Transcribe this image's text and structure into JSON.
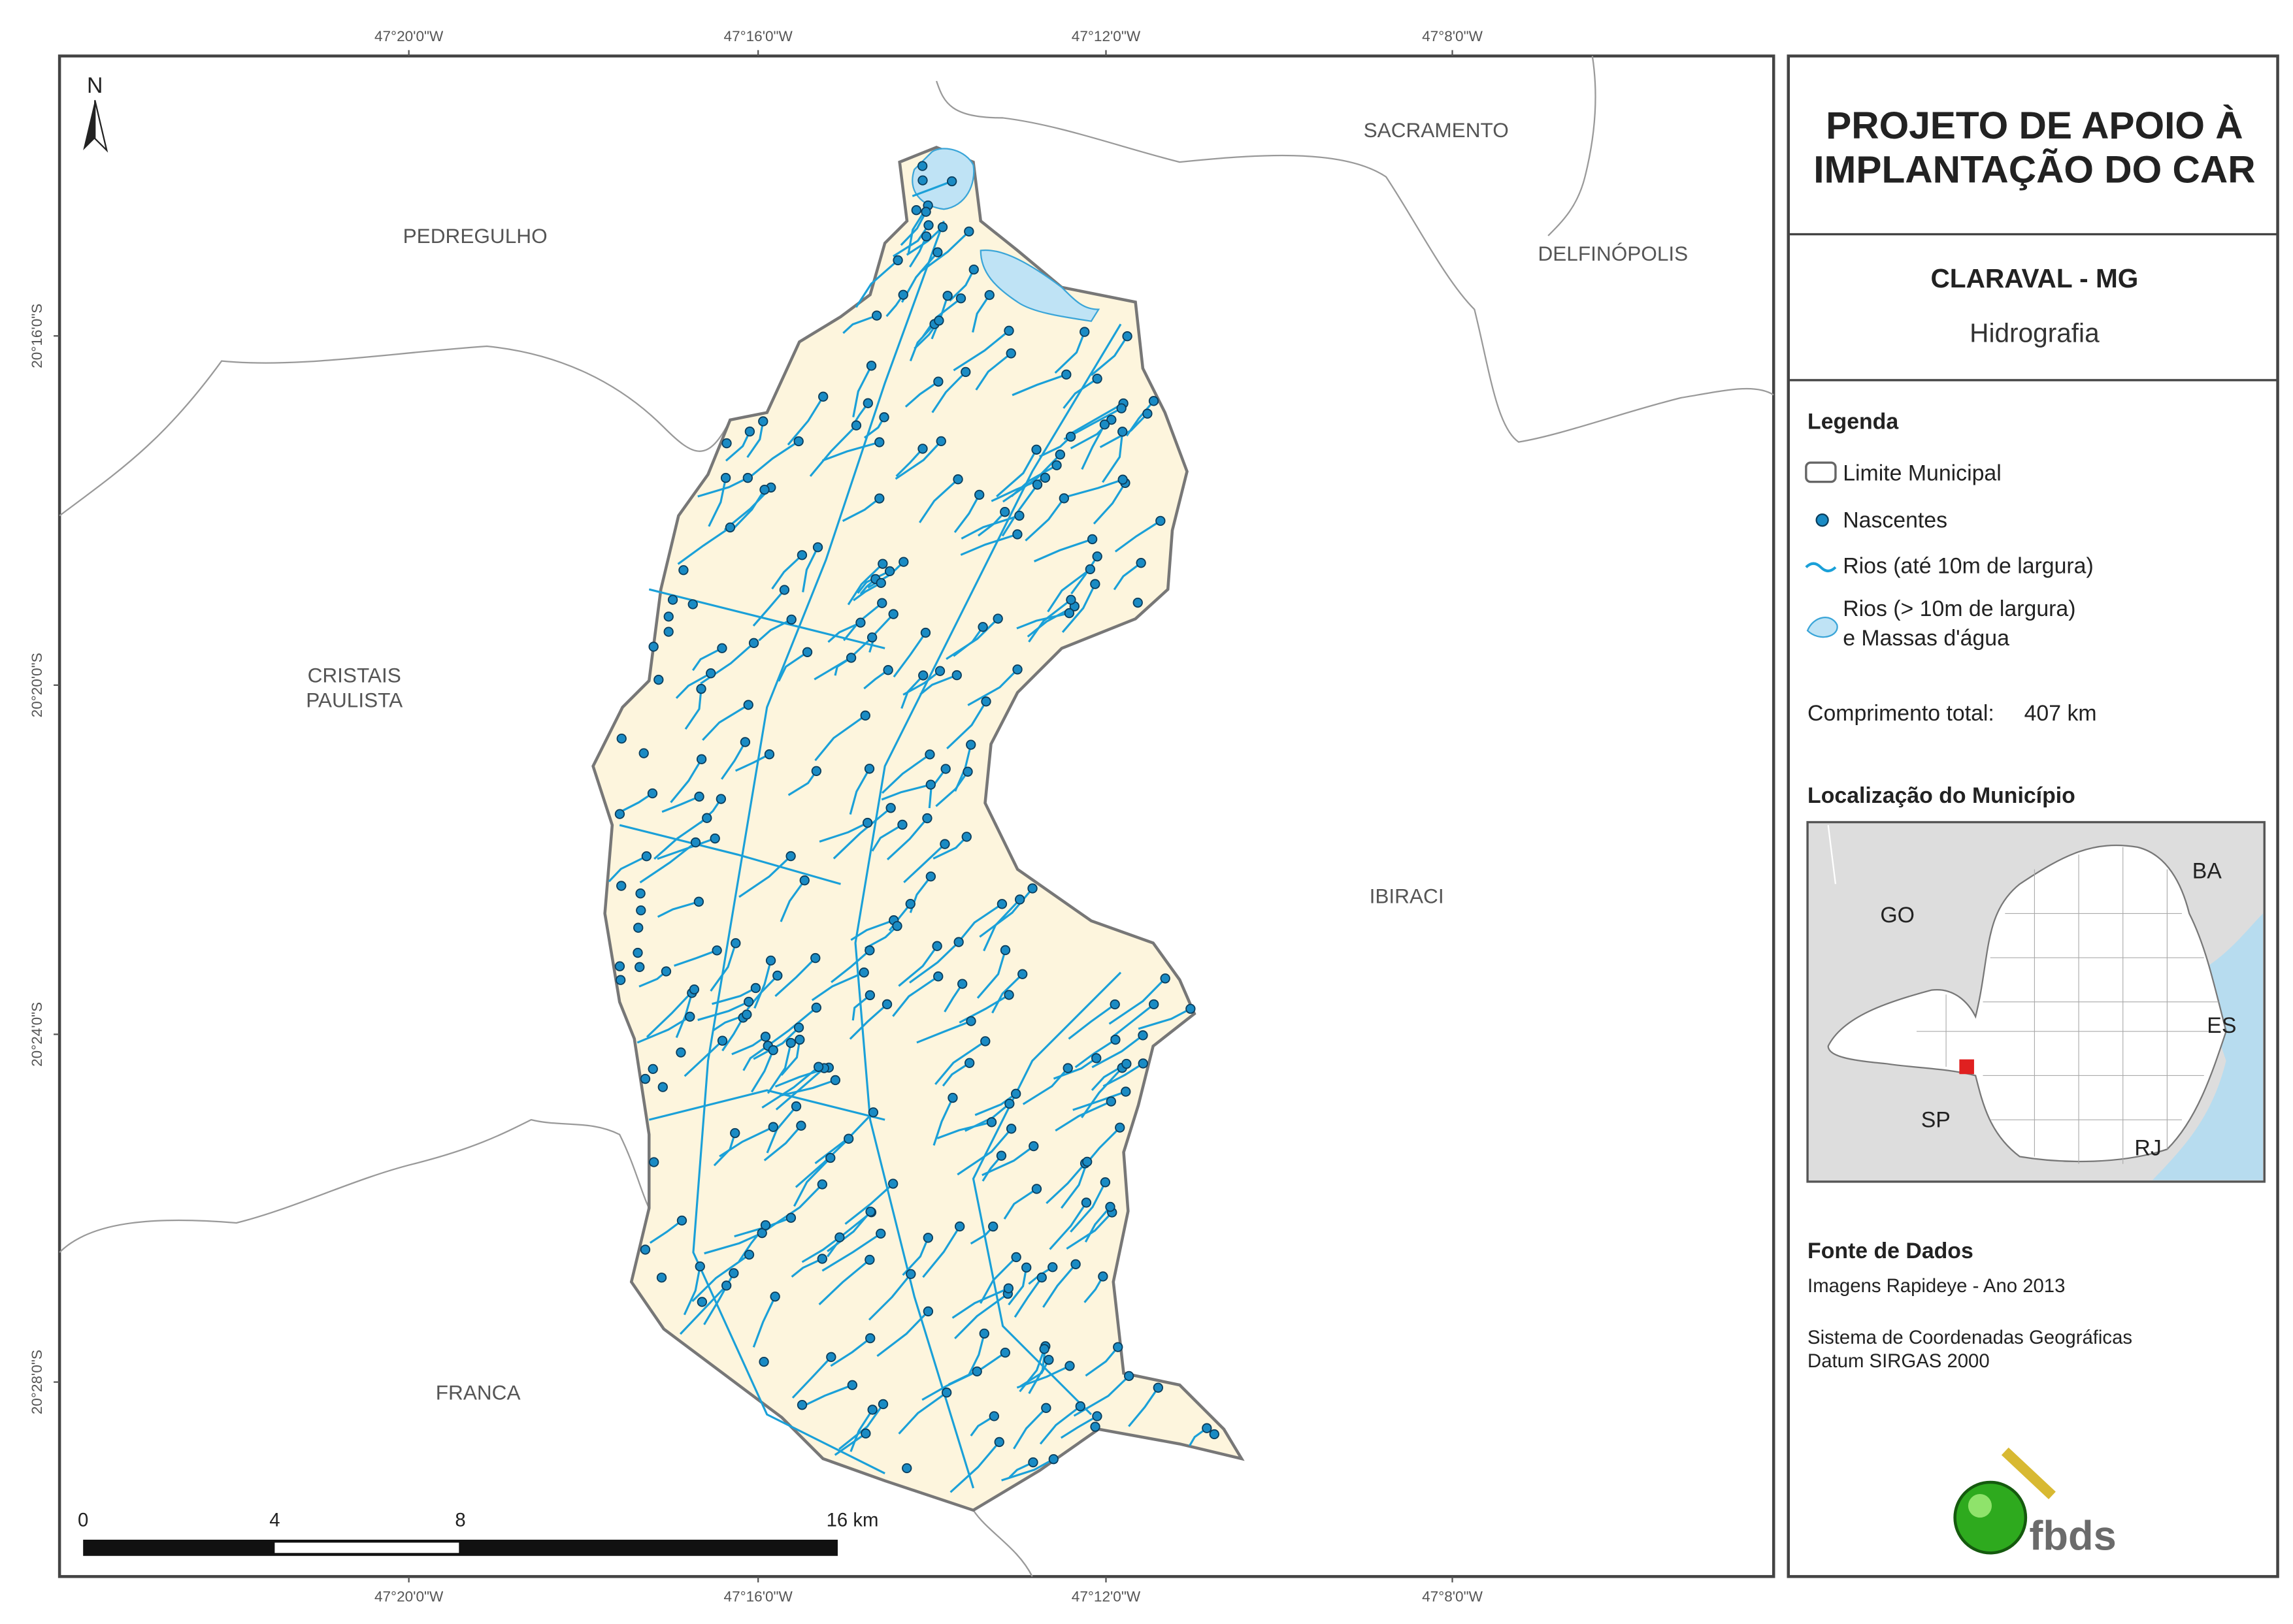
{
  "map": {
    "north": "N",
    "top_ticks": [
      "47°20'0\"W",
      "47°16'0\"W",
      "47°12'0\"W",
      "47°8'0\"W"
    ],
    "bottom_ticks": [
      "47°20'0\"W",
      "47°16'0\"W",
      "47°12'0\"W",
      "47°8'0\"W"
    ],
    "left_ticks": [
      "20°16'0\"S",
      "20°20'0\"S",
      "20°24'0\"S",
      "20°28'0\"S"
    ],
    "places": {
      "pedregulho": "PEDREGULHO",
      "sacramento": "SACRAMENTO",
      "delfinopolis": "DELFINÓPOLIS",
      "cristais": [
        "CRISTAIS",
        "PAULISTA"
      ],
      "ibiraci": "IBIRACI",
      "franca": "FRANCA"
    },
    "scale": [
      "0",
      "4",
      "8",
      "16 km"
    ]
  },
  "panel": {
    "title": [
      "PROJETO DE APOIO À",
      "IMPLANTAÇÃO DO CAR"
    ],
    "municipality": "CLARAVAL - MG",
    "theme": "Hidrografia",
    "legend": {
      "title": "Legenda",
      "boundary": "Limite Municipal",
      "springs": "Nascentes",
      "rivers": "Rios (até 10m de largura)",
      "water": [
        "Rios (> 10m de largura)",
        "e Massas d'água"
      ]
    },
    "length": {
      "label": "Comprimento total:",
      "value": "407 km"
    },
    "location": {
      "title": "Localização do Município",
      "states": {
        "ba": "BA",
        "go": "GO",
        "es": "ES",
        "sp": "SP",
        "rj": "RJ"
      }
    },
    "sources": {
      "title": "Fonte de Dados",
      "lines": [
        "Imagens Rapideye - Ano 2013",
        "Sistema de Coordenadas Geográficas",
        "Datum SIRGAS 2000"
      ]
    },
    "logo": "fbds"
  }
}
